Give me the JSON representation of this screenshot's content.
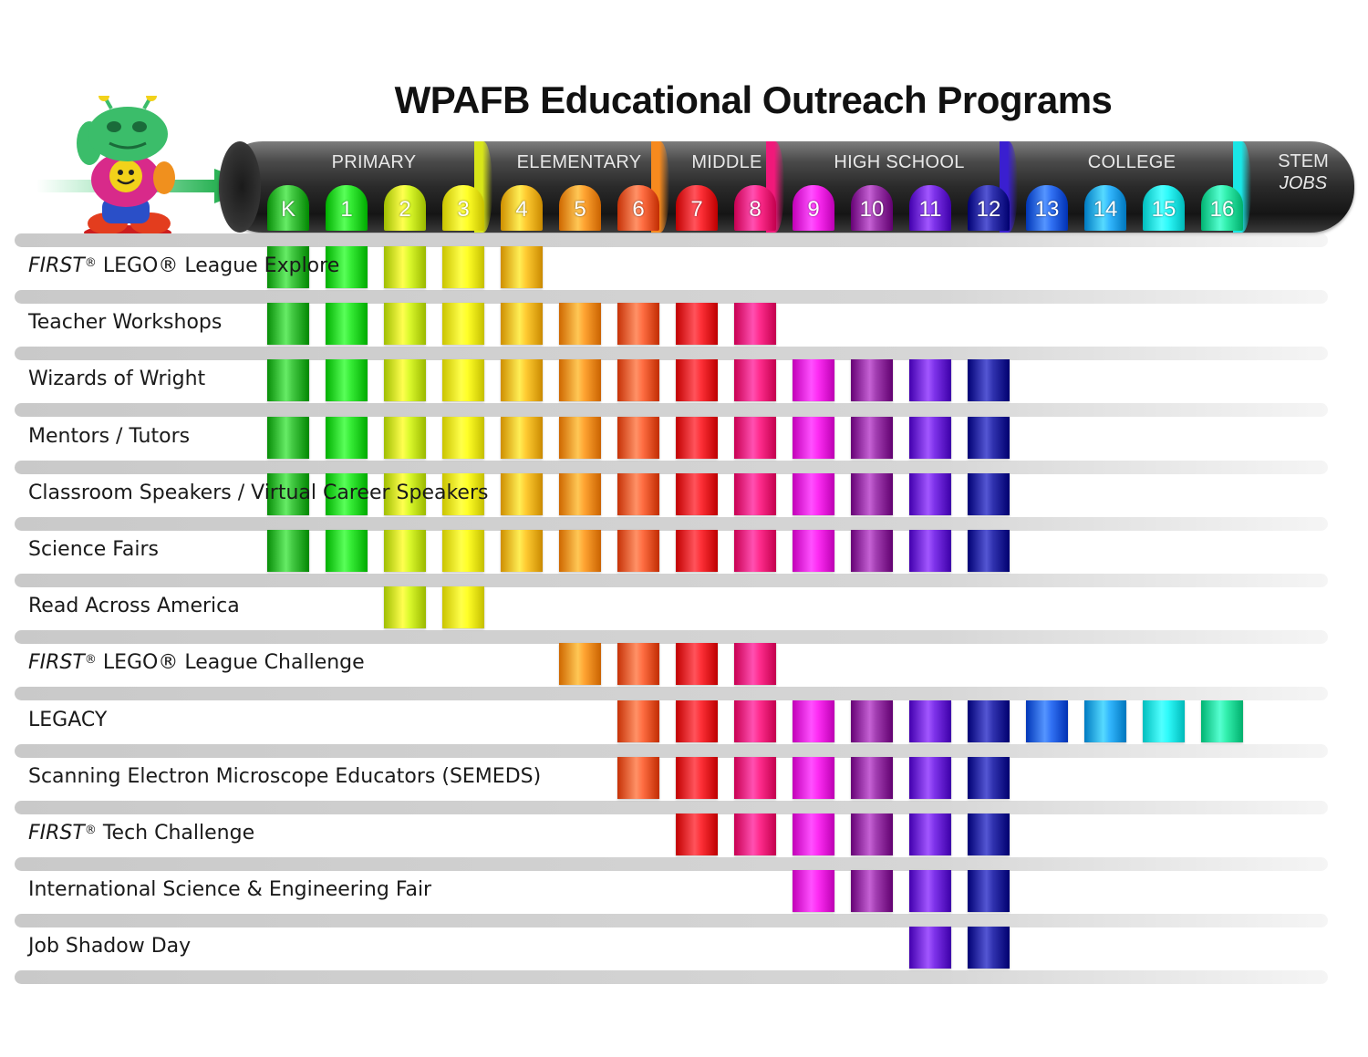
{
  "title": "WPAFB Educational Outreach Programs",
  "grades": [
    "K",
    "1",
    "2",
    "3",
    "4",
    "5",
    "6",
    "7",
    "8",
    "9",
    "10",
    "11",
    "12",
    "13",
    "14",
    "15",
    "16"
  ],
  "grade_colors": [
    "#2fb52f",
    "#22d822",
    "#c8e619",
    "#f2ec13",
    "#f7b71e",
    "#f7901e",
    "#ee5a2f",
    "#ea1c24",
    "#f0197a",
    "#ea19e0",
    "#8e2a9d",
    "#6a1fd6",
    "#1d1f9c",
    "#1e5ee0",
    "#1fa3ea",
    "#1ae6e6",
    "#1fdc9a"
  ],
  "bands": [
    {
      "label": "PRIMARY",
      "color": "#d8e619"
    },
    {
      "label": "ELEMENTARY",
      "color": "#f78a1e"
    },
    {
      "label": "MIDDLE",
      "color": "#f0197a"
    },
    {
      "label": "HIGH SCHOOL",
      "color": "#3a1fd0"
    },
    {
      "label": "COLLEGE",
      "color": "#1ae6e6"
    }
  ],
  "stem": {
    "line1": "STEM",
    "line2": "JOBS"
  },
  "programs": [
    {
      "prefix": "FIRST",
      "name": "LEGO® League Explore",
      "grades": [
        0,
        1,
        2,
        3,
        4
      ]
    },
    {
      "prefix": "",
      "name": "Teacher Workshops",
      "grades": [
        0,
        1,
        2,
        3,
        4,
        5,
        6,
        7,
        8
      ]
    },
    {
      "prefix": "",
      "name": "Wizards of Wright",
      "grades": [
        0,
        1,
        2,
        3,
        4,
        5,
        6,
        7,
        8,
        9,
        10,
        11,
        12
      ]
    },
    {
      "prefix": "",
      "name": "Mentors / Tutors",
      "grades": [
        0,
        1,
        2,
        3,
        4,
        5,
        6,
        7,
        8,
        9,
        10,
        11,
        12
      ]
    },
    {
      "prefix": "",
      "name": "Classroom Speakers / Virtual Career Speakers",
      "grades": [
        0,
        1,
        2,
        3,
        4,
        5,
        6,
        7,
        8,
        9,
        10,
        11,
        12
      ]
    },
    {
      "prefix": "",
      "name": "Science Fairs",
      "grades": [
        0,
        1,
        2,
        3,
        4,
        5,
        6,
        7,
        8,
        9,
        10,
        11,
        12
      ]
    },
    {
      "prefix": "",
      "name": "Read Across America",
      "grades": [
        2,
        3
      ]
    },
    {
      "prefix": "FIRST",
      "name": "LEGO® League Challenge",
      "grades": [
        5,
        6,
        7,
        8
      ]
    },
    {
      "prefix": "",
      "name": "LEGACY",
      "grades": [
        6,
        7,
        8,
        9,
        10,
        11,
        12,
        13,
        14,
        15,
        16
      ]
    },
    {
      "prefix": "",
      "name": "Scanning Electron Microscope Educators (SEMEDS)",
      "grades": [
        6,
        7,
        8,
        9,
        10,
        11,
        12
      ]
    },
    {
      "prefix": "FIRST",
      "name": "Tech Challenge",
      "grades": [
        7,
        8,
        9,
        10,
        11,
        12
      ]
    },
    {
      "prefix": "",
      "name": "International Science & Engineering Fair",
      "grades": [
        9,
        10,
        11,
        12
      ]
    },
    {
      "prefix": "",
      "name": "Job Shadow Day",
      "grades": [
        11,
        12
      ]
    }
  ]
}
